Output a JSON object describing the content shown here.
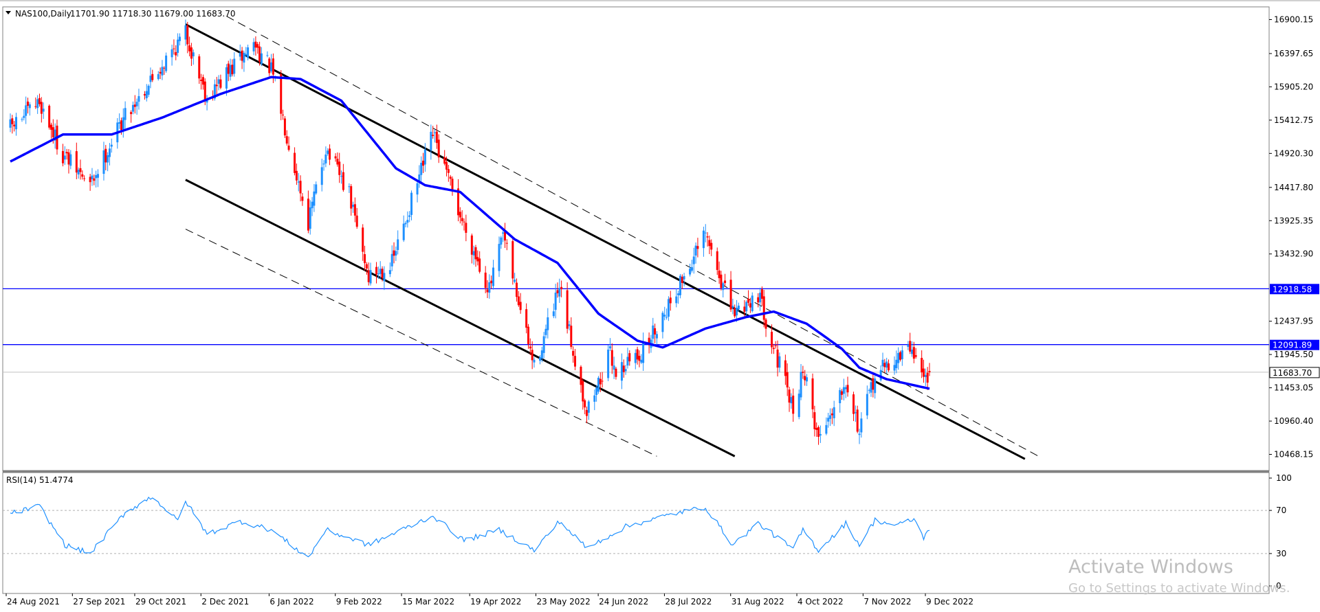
{
  "chart_data": {
    "type": "candlestick",
    "symbol_label": "NAS100,Daily",
    "ohlc_readout": "11701.90 11718.30 11679.00 11683.70",
    "current_price": "11683.70",
    "y_ticks": [
      "16900.15",
      "16397.65",
      "15905.20",
      "15412.75",
      "14920.30",
      "14417.80",
      "13925.35",
      "13432.90",
      "12437.95",
      "11945.50",
      "11453.05",
      "10960.40",
      "10468.15"
    ],
    "x_ticks": [
      "24 Aug 2021",
      "27 Sep 2021",
      "29 Oct 2021",
      "2 Dec 2021",
      "6 Jan 2022",
      "9 Feb 2022",
      "15 Mar 2022",
      "19 Apr 2022",
      "23 May 2022",
      "24 Jun 2022",
      "28 Jul 2022",
      "31 Aug 2022",
      "4 Oct 2022",
      "7 Nov 2022",
      "9 Dec 2022"
    ],
    "horizontal_levels": [
      {
        "value": 12918.58,
        "label": "12918.58",
        "color": "#0000ff"
      },
      {
        "value": 12091.89,
        "label": "12091.89",
        "color": "#0000ff"
      }
    ],
    "price_anchors": [
      {
        "date": "2021-08-24",
        "close": 15300
      },
      {
        "date": "2021-09-08",
        "close": 15680
      },
      {
        "date": "2021-09-20",
        "close": 14900
      },
      {
        "date": "2021-10-04",
        "close": 14450
      },
      {
        "date": "2021-10-21",
        "close": 15450
      },
      {
        "date": "2021-11-22",
        "close": 16700
      },
      {
        "date": "2021-12-03",
        "close": 15750
      },
      {
        "date": "2021-12-27",
        "close": 16550
      },
      {
        "date": "2022-01-05",
        "close": 16150
      },
      {
        "date": "2022-01-24",
        "close": 13900
      },
      {
        "date": "2022-02-02",
        "close": 15000
      },
      {
        "date": "2022-02-14",
        "close": 14300
      },
      {
        "date": "2022-02-24",
        "close": 13100
      },
      {
        "date": "2022-03-08",
        "close": 13300
      },
      {
        "date": "2022-03-29",
        "close": 15200
      },
      {
        "date": "2022-04-12",
        "close": 14000
      },
      {
        "date": "2022-04-27",
        "close": 12900
      },
      {
        "date": "2022-05-04",
        "close": 13700
      },
      {
        "date": "2022-05-20",
        "close": 11750
      },
      {
        "date": "2022-06-02",
        "close": 12900
      },
      {
        "date": "2022-06-16",
        "close": 11100
      },
      {
        "date": "2022-06-28",
        "close": 11950
      },
      {
        "date": "2022-07-01",
        "close": 11700
      },
      {
        "date": "2022-07-15",
        "close": 12000
      },
      {
        "date": "2022-08-16",
        "close": 13700
      },
      {
        "date": "2022-08-30",
        "close": 12550
      },
      {
        "date": "2022-09-12",
        "close": 12850
      },
      {
        "date": "2022-09-30",
        "close": 11100
      },
      {
        "date": "2022-10-05",
        "close": 11750
      },
      {
        "date": "2022-10-13",
        "close": 10700
      },
      {
        "date": "2022-10-27",
        "close": 11600
      },
      {
        "date": "2022-11-03",
        "close": 10800
      },
      {
        "date": "2022-11-11",
        "close": 11650
      },
      {
        "date": "2022-11-30",
        "close": 12050
      },
      {
        "date": "2022-12-06",
        "close": 11600
      },
      {
        "date": "2022-12-09",
        "close": 11683.7
      }
    ],
    "ma_anchors": [
      {
        "date": "2021-08-24",
        "value": 14800
      },
      {
        "date": "2021-09-20",
        "value": 15200
      },
      {
        "date": "2021-10-15",
        "value": 15200
      },
      {
        "date": "2021-11-10",
        "value": 15450
      },
      {
        "date": "2021-12-10",
        "value": 15800
      },
      {
        "date": "2022-01-05",
        "value": 16050
      },
      {
        "date": "2022-01-20",
        "value": 16020
      },
      {
        "date": "2022-02-10",
        "value": 15700
      },
      {
        "date": "2022-03-10",
        "value": 14700
      },
      {
        "date": "2022-03-25",
        "value": 14450
      },
      {
        "date": "2022-04-12",
        "value": 14350
      },
      {
        "date": "2022-05-10",
        "value": 13650
      },
      {
        "date": "2022-06-01",
        "value": 13300
      },
      {
        "date": "2022-06-22",
        "value": 12550
      },
      {
        "date": "2022-07-12",
        "value": 12150
      },
      {
        "date": "2022-07-25",
        "value": 12050
      },
      {
        "date": "2022-08-16",
        "value": 12330
      },
      {
        "date": "2022-09-06",
        "value": 12500
      },
      {
        "date": "2022-09-20",
        "value": 12580
      },
      {
        "date": "2022-10-07",
        "value": 12400
      },
      {
        "date": "2022-10-25",
        "value": 12030
      },
      {
        "date": "2022-11-03",
        "value": 11750
      },
      {
        "date": "2022-11-17",
        "value": 11580
      },
      {
        "date": "2022-12-09",
        "value": 11440
      }
    ],
    "channel_lines": [
      {
        "style": "solid",
        "start": {
          "date": "2021-11-22",
          "value": 16830
        },
        "end": {
          "date": "2023-01-27",
          "value": 10400
        }
      },
      {
        "style": "solid",
        "start": {
          "date": "2021-11-22",
          "value": 14530
        },
        "end": {
          "date": "2022-08-31",
          "value": 10440
        }
      },
      {
        "style": "dashed",
        "start": {
          "date": "2021-12-13",
          "value": 16950
        },
        "end": {
          "date": "2023-02-03",
          "value": 10440
        }
      },
      {
        "style": "dashed",
        "start": {
          "date": "2021-11-22",
          "value": 13800
        },
        "end": {
          "date": "2022-07-22",
          "value": 10440
        }
      }
    ],
    "rsi": {
      "label": "RSI(14) 51.4774",
      "levels": [
        "100",
        "70",
        "30",
        "0"
      ],
      "anchors": [
        {
          "date": "2021-08-24",
          "value": 67
        },
        {
          "date": "2021-09-08",
          "value": 74
        },
        {
          "date": "2021-09-21",
          "value": 38
        },
        {
          "date": "2021-10-04",
          "value": 30
        },
        {
          "date": "2021-10-22",
          "value": 68
        },
        {
          "date": "2021-11-05",
          "value": 83
        },
        {
          "date": "2021-11-18",
          "value": 60
        },
        {
          "date": "2021-11-22",
          "value": 79
        },
        {
          "date": "2021-12-03",
          "value": 48
        },
        {
          "date": "2021-12-20",
          "value": 60
        },
        {
          "date": "2022-01-05",
          "value": 52
        },
        {
          "date": "2022-01-24",
          "value": 26
        },
        {
          "date": "2022-02-02",
          "value": 52
        },
        {
          "date": "2022-02-24",
          "value": 38
        },
        {
          "date": "2022-03-29",
          "value": 65
        },
        {
          "date": "2022-04-14",
          "value": 42
        },
        {
          "date": "2022-05-02",
          "value": 52
        },
        {
          "date": "2022-05-20",
          "value": 33
        },
        {
          "date": "2022-06-02",
          "value": 60
        },
        {
          "date": "2022-06-16",
          "value": 35
        },
        {
          "date": "2022-07-06",
          "value": 55
        },
        {
          "date": "2022-08-02",
          "value": 68
        },
        {
          "date": "2022-08-16",
          "value": 73
        },
        {
          "date": "2022-08-30",
          "value": 38
        },
        {
          "date": "2022-09-12",
          "value": 58
        },
        {
          "date": "2022-09-30",
          "value": 34
        },
        {
          "date": "2022-10-05",
          "value": 52
        },
        {
          "date": "2022-10-13",
          "value": 33
        },
        {
          "date": "2022-10-27",
          "value": 58
        },
        {
          "date": "2022-11-03",
          "value": 38
        },
        {
          "date": "2022-11-11",
          "value": 61
        },
        {
          "date": "2022-11-22",
          "value": 56
        },
        {
          "date": "2022-12-01",
          "value": 62
        },
        {
          "date": "2022-12-06",
          "value": 45
        },
        {
          "date": "2022-12-09",
          "value": 51.48
        }
      ]
    },
    "colors": {
      "bull": "#1e90ff",
      "bear": "#ff0000",
      "ma": "#0000ff",
      "channel": "#000000",
      "rsi": "#1e90ff",
      "price_line": "#c0c0c0"
    }
  },
  "watermark": {
    "title": "Activate Windows",
    "subtitle": "Go to Settings to activate Windows."
  }
}
